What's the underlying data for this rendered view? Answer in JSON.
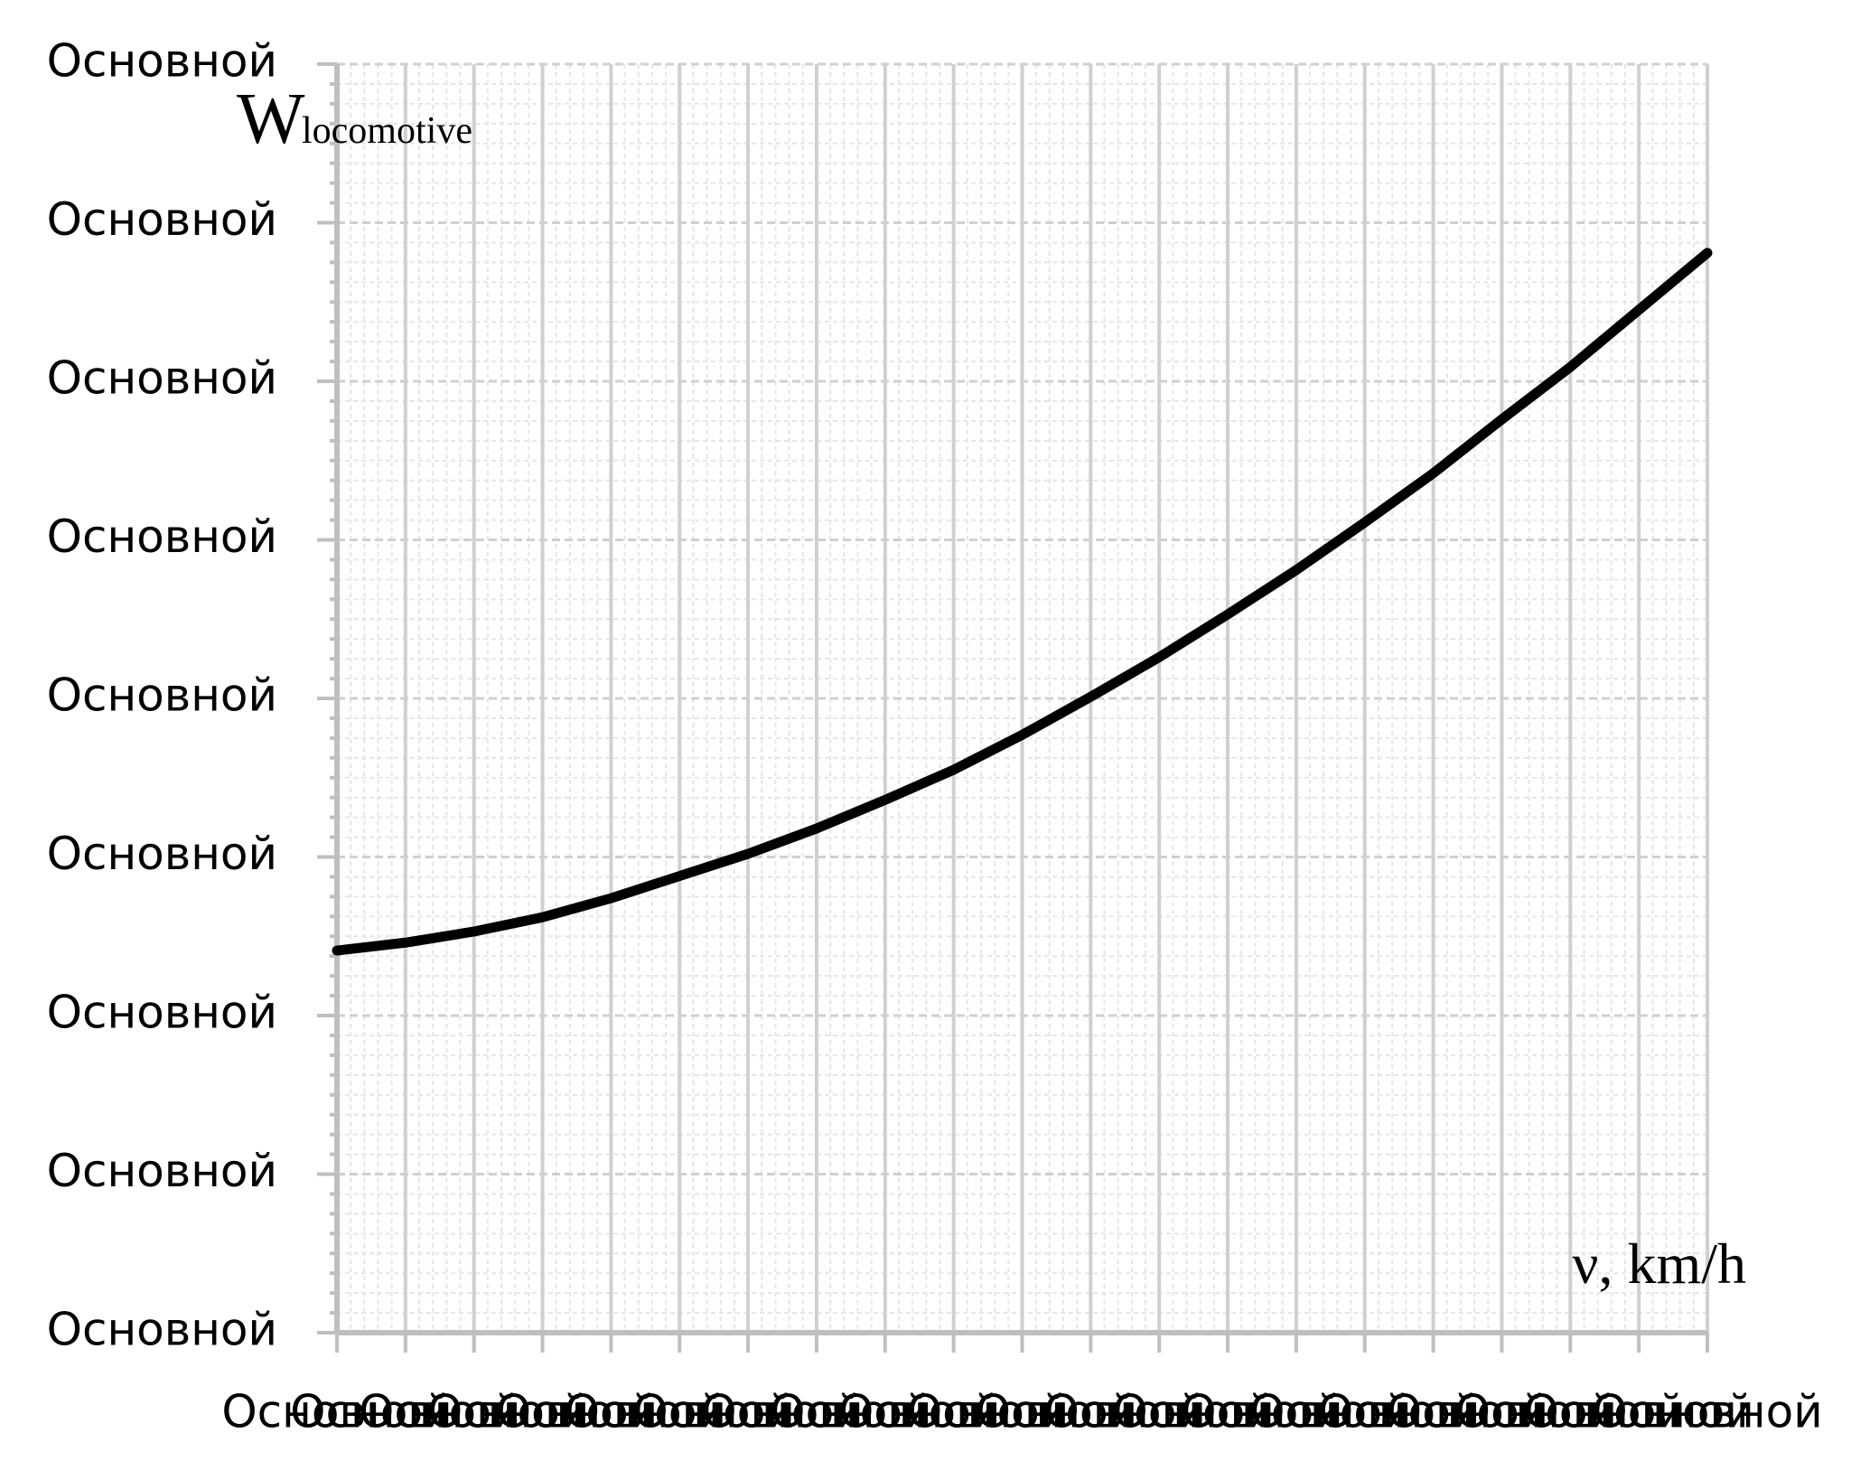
{
  "chart_data": {
    "type": "line",
    "y_label": "W",
    "y_label_sub": "locomotive",
    "x_label": "ν, km/h",
    "x": [
      0,
      1,
      2,
      3,
      4,
      5,
      6,
      7,
      8,
      9,
      10,
      11,
      12,
      13,
      14,
      15,
      16,
      17,
      18,
      19,
      20
    ],
    "series": [
      {
        "color": "#000000",
        "values": [
          2.41,
          2.46,
          2.53,
          2.62,
          2.74,
          2.88,
          3.02,
          3.18,
          3.36,
          3.55,
          3.77,
          4.01,
          4.26,
          4.53,
          4.81,
          5.11,
          5.42,
          5.76,
          6.09,
          6.45,
          6.81
        ]
      }
    ],
    "xlim": [
      0,
      20
    ],
    "ylim": [
      0,
      8
    ],
    "xticks": [
      {
        "value": 0,
        "label": "Основной"
      },
      {
        "value": 1,
        "label": "Основной"
      },
      {
        "value": 2,
        "label": "Основной"
      },
      {
        "value": 3,
        "label": "Основной"
      },
      {
        "value": 4,
        "label": "Основной"
      },
      {
        "value": 5,
        "label": "Основной"
      },
      {
        "value": 6,
        "label": "Основной"
      },
      {
        "value": 7,
        "label": "Основной"
      },
      {
        "value": 8,
        "label": "Основной"
      },
      {
        "value": 9,
        "label": "Основной"
      },
      {
        "value": 10,
        "label": "Основной"
      },
      {
        "value": 11,
        "label": "Основной"
      },
      {
        "value": 12,
        "label": "Основной"
      },
      {
        "value": 13,
        "label": "Основной"
      },
      {
        "value": 14,
        "label": "Основной"
      },
      {
        "value": 15,
        "label": "Основной"
      },
      {
        "value": 16,
        "label": "Основной"
      },
      {
        "value": 17,
        "label": "Основной"
      },
      {
        "value": 18,
        "label": "Основной"
      },
      {
        "value": 19,
        "label": "Основной"
      },
      {
        "value": 20,
        "label": "Основной"
      }
    ],
    "yticks": [
      {
        "value": 0,
        "label": "Основной"
      },
      {
        "value": 1,
        "label": "Основной"
      },
      {
        "value": 2,
        "label": "Основной"
      },
      {
        "value": 3,
        "label": "Основной"
      },
      {
        "value": 4,
        "label": "Основной"
      },
      {
        "value": 5,
        "label": "Основной"
      },
      {
        "value": 6,
        "label": "Основной"
      },
      {
        "value": 7,
        "label": "Основной"
      },
      {
        "value": 8,
        "label": "Основной"
      }
    ],
    "grid": true
  }
}
